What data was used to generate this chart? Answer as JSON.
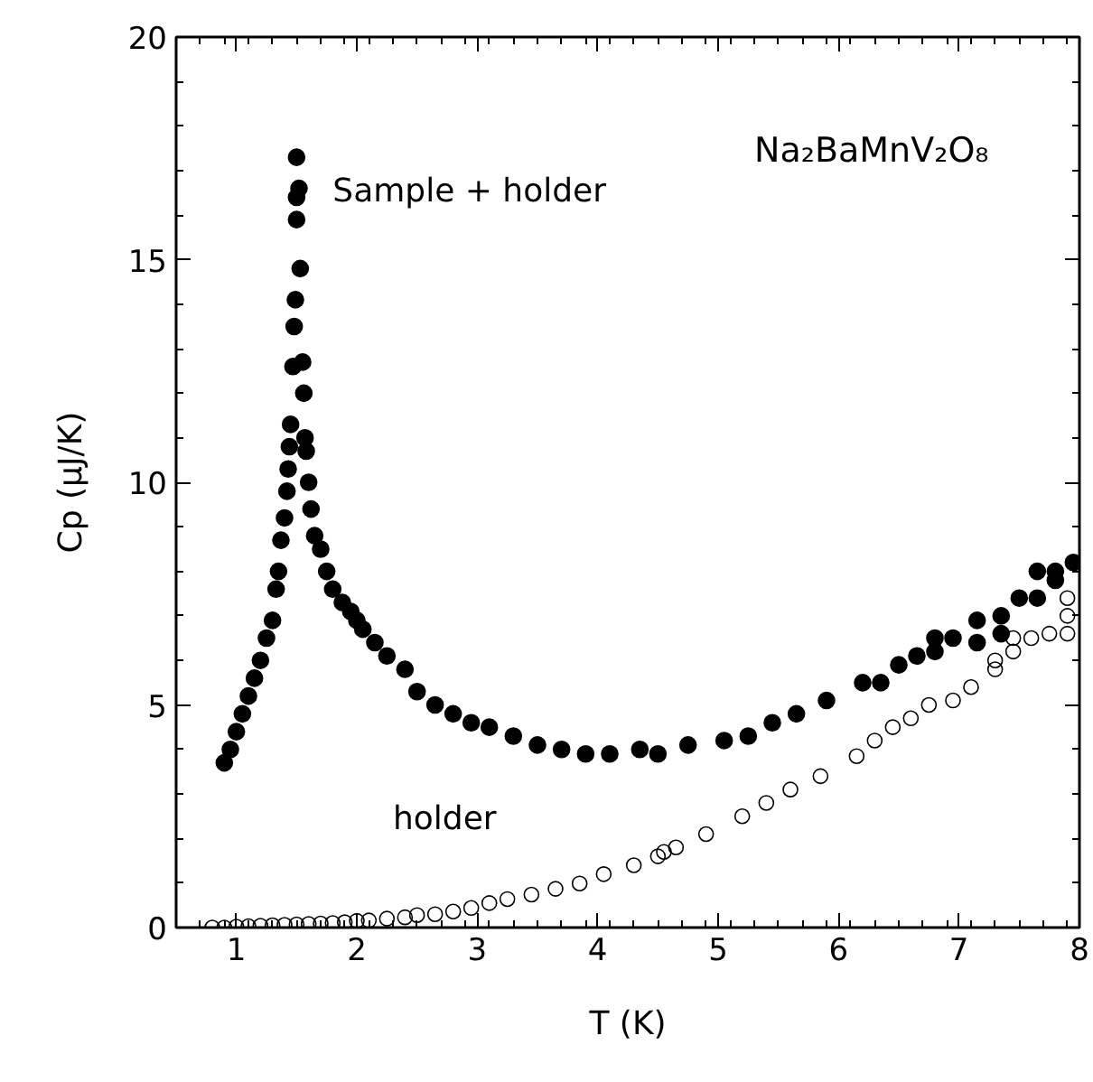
{
  "chart_data": {
    "type": "scatter",
    "xlabel": "T (K)",
    "ylabel": "Cp (μJ/K)",
    "annotations": [
      "Na₂BaMnV₂O₈"
    ],
    "xlim": [
      0.5,
      8
    ],
    "ylim": [
      0,
      20
    ],
    "xticks": [
      1,
      2,
      3,
      4,
      5,
      6,
      7,
      8
    ],
    "yticks": [
      0,
      5,
      10,
      15,
      20
    ],
    "grid": false,
    "legend": false,
    "series": [
      {
        "name": "Sample + holder",
        "color": "#000000",
        "marker": "circle",
        "x": [
          0.9,
          0.95,
          1.0,
          1.05,
          1.1,
          1.15,
          1.2,
          1.25,
          1.3,
          1.33,
          1.35,
          1.37,
          1.4,
          1.42,
          1.43,
          1.44,
          1.45,
          1.47,
          1.48,
          1.49,
          1.5,
          1.5,
          1.5,
          1.52,
          1.53,
          1.55,
          1.56,
          1.57,
          1.58,
          1.6,
          1.62,
          1.65,
          1.7,
          1.75,
          1.8,
          1.88,
          1.95,
          2.0,
          2.05,
          2.15,
          2.25,
          2.4,
          2.5,
          2.65,
          2.8,
          2.95,
          3.1,
          3.3,
          3.5,
          3.7,
          3.9,
          4.1,
          4.35,
          4.5,
          4.75,
          5.05,
          5.25,
          5.45,
          5.65,
          5.9,
          6.2,
          6.35,
          6.5,
          6.65,
          6.8,
          6.8,
          6.95,
          7.15,
          7.15,
          7.35,
          7.35,
          7.5,
          7.65,
          7.65,
          7.8,
          7.8,
          7.95
        ],
        "values": [
          3.7,
          4.0,
          4.4,
          4.8,
          5.2,
          5.6,
          6.0,
          6.5,
          6.9,
          7.6,
          8.0,
          8.7,
          9.2,
          9.8,
          10.3,
          10.8,
          11.3,
          12.6,
          13.5,
          14.1,
          15.9,
          16.4,
          17.3,
          16.6,
          14.8,
          12.7,
          12.0,
          11.0,
          10.7,
          10.0,
          9.4,
          8.8,
          8.5,
          8.0,
          7.6,
          7.3,
          7.1,
          6.9,
          6.7,
          6.4,
          6.1,
          5.8,
          5.3,
          5.0,
          4.8,
          4.6,
          4.5,
          4.3,
          4.1,
          4.0,
          3.9,
          3.9,
          4.0,
          3.9,
          4.1,
          4.2,
          4.3,
          4.6,
          4.8,
          5.1,
          5.5,
          5.5,
          5.9,
          6.1,
          6.2,
          6.5,
          6.5,
          6.9,
          6.4,
          6.6,
          7.0,
          7.4,
          7.4,
          8.0,
          8.0,
          7.8,
          8.2
        ]
      },
      {
        "name": "holder",
        "color": "#000000",
        "marker": "circle",
        "x": [
          0.8,
          0.9,
          1.0,
          1.1,
          1.2,
          1.3,
          1.4,
          1.5,
          1.6,
          1.7,
          1.8,
          1.9,
          2.0,
          2.1,
          2.25,
          2.4,
          2.5,
          2.65,
          2.8,
          2.95,
          3.1,
          3.25,
          3.45,
          3.65,
          3.85,
          4.05,
          4.3,
          4.5,
          4.55,
          4.65,
          4.9,
          5.2,
          5.4,
          5.6,
          5.85,
          6.15,
          6.3,
          6.45,
          6.6,
          6.75,
          6.95,
          7.1,
          7.3,
          7.3,
          7.45,
          7.45,
          7.6,
          7.75,
          7.9,
          7.9,
          7.9
        ],
        "values": [
          0,
          0,
          0.02,
          0.03,
          0.04,
          0.05,
          0.06,
          0.07,
          0.08,
          0.09,
          0.1,
          0.12,
          0.15,
          0.16,
          0.2,
          0.23,
          0.28,
          0.3,
          0.36,
          0.44,
          0.55,
          0.64,
          0.74,
          0.87,
          0.99,
          1.2,
          1.4,
          1.6,
          1.7,
          1.8,
          2.1,
          2.5,
          2.8,
          3.1,
          3.4,
          3.85,
          4.2,
          4.5,
          4.7,
          5.0,
          5.1,
          5.4,
          5.8,
          6.0,
          6.2,
          6.5,
          6.5,
          6.6,
          6.6,
          7.0,
          7.4
        ]
      }
    ]
  }
}
